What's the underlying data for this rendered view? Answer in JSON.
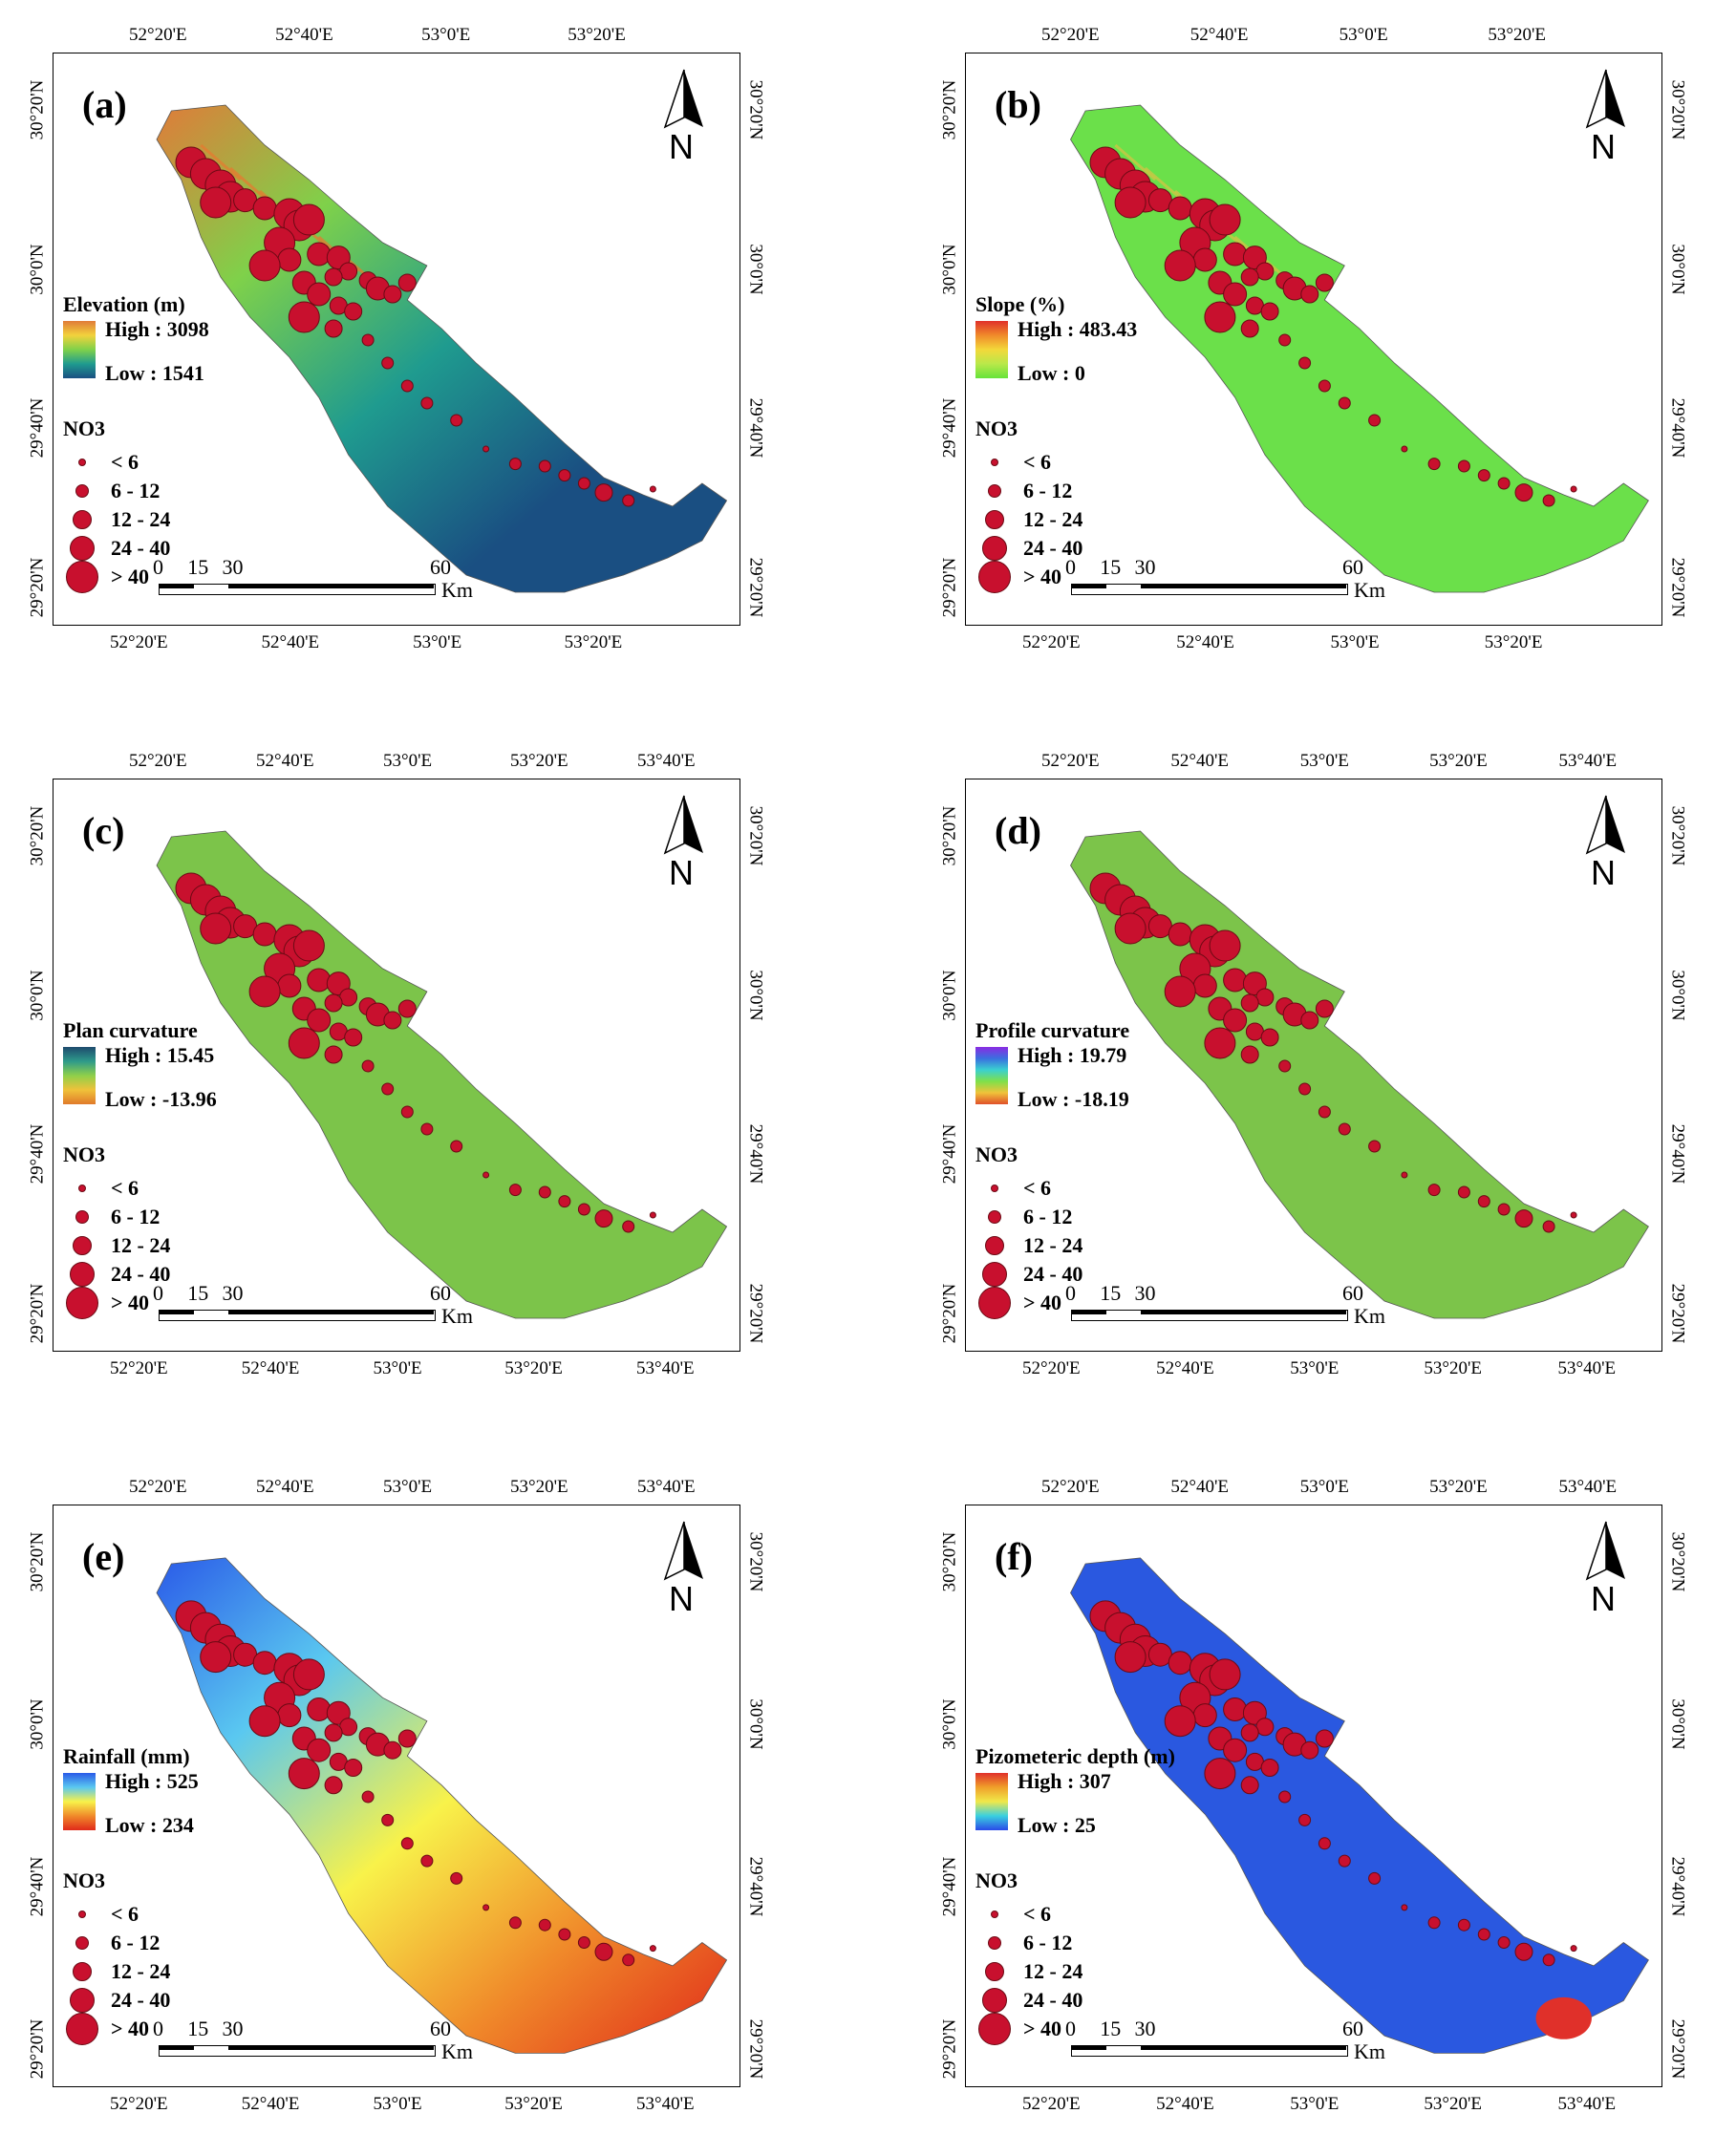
{
  "colors": {
    "point_fill": "#c8102e",
    "point_stroke": "#6b0a14",
    "frame": "#000000"
  },
  "north_label": "N",
  "no3_title": "NO3",
  "no3_classes": [
    "< 6",
    "6 - 12",
    "12 - 24",
    "24 - 40",
    "> 40"
  ],
  "scale_bar": {
    "ticks": [
      "0",
      "15",
      "30",
      "60"
    ],
    "unit": "Km"
  },
  "panels": [
    {
      "id": "a",
      "label": "(a)",
      "top_ticks": [
        "52°20'E",
        "52°40'E",
        "53°0'E",
        "53°20'E"
      ],
      "bottom_ticks": [
        "52°20'E",
        "52°40'E",
        "53°0'E",
        "53°20'E"
      ],
      "left_ticks": [
        "30°20'N",
        "30°0'N",
        "29°40'N",
        "29°20'N"
      ],
      "right_ticks": [
        "30°20'N",
        "30°0'N",
        "29°40'N",
        "29°20'N"
      ],
      "legend_title": "Elevation (m)",
      "high": "High : 3098",
      "low": "Low : 1541",
      "ramp": [
        "#e07b39",
        "#f2d23c",
        "#7fd14a",
        "#1f9b8f",
        "#1a4f82"
      ],
      "fill": "#1d4f7c",
      "accent": "#e8782f"
    },
    {
      "id": "b",
      "label": "(b)",
      "top_ticks": [
        "52°20'E",
        "52°40'E",
        "53°0'E",
        "53°20'E"
      ],
      "bottom_ticks": [
        "52°20'E",
        "52°40'E",
        "53°0'E",
        "53°20'E"
      ],
      "left_ticks": [
        "30°20'N",
        "30°0'N",
        "29°40'N",
        "29°20'N"
      ],
      "right_ticks": [
        "30°20'N",
        "30°0'N",
        "29°40'N",
        "29°20'N"
      ],
      "legend_title": "Slope (%)",
      "high": "High : 483.43",
      "low": "Low : 0",
      "ramp": [
        "#e0302a",
        "#f08a2a",
        "#f3d83a",
        "#b9e84a",
        "#66e33a"
      ],
      "fill": "#6be04a",
      "accent": "#d8c245"
    },
    {
      "id": "c",
      "label": "(c)",
      "top_ticks": [
        "52°20'E",
        "52°40'E",
        "53°0'E",
        "53°20'E",
        "53°40'E"
      ],
      "bottom_ticks": [
        "52°20'E",
        "52°40'E",
        "53°0'E",
        "53°20'E",
        "53°40'E"
      ],
      "left_ticks": [
        "30°20'N",
        "30°0'N",
        "29°40'N",
        "29°20'N"
      ],
      "right_ticks": [
        "30°20'N",
        "30°0'N",
        "29°40'N",
        "29°20'N"
      ],
      "legend_title": "Plan curvature",
      "high": "High : 15.45",
      "low": "Low : -13.96",
      "ramp": [
        "#1e4a6e",
        "#2e9a8a",
        "#8fd04a",
        "#f0c23a",
        "#e07a2a"
      ],
      "fill": "#7cc44a",
      "accent": "#5f9a55"
    },
    {
      "id": "d",
      "label": "(d)",
      "top_ticks": [
        "52°20'E",
        "52°40'E",
        "53°0'E",
        "53°20'E",
        "53°40'E"
      ],
      "bottom_ticks": [
        "52°20'E",
        "52°40'E",
        "53°0'E",
        "53°20'E",
        "53°40'E"
      ],
      "left_ticks": [
        "30°20'N",
        "30°0'N",
        "29°40'N",
        "29°20'N"
      ],
      "right_ticks": [
        "30°20'N",
        "30°0'N",
        "29°40'N",
        "29°20'N"
      ],
      "legend_title": "Profile curvature",
      "high": "High : 19.79",
      "low": "Low : -18.19",
      "ramp": [
        "#8a2be2",
        "#3a6fe0",
        "#3ad0d0",
        "#7fe04a",
        "#f0c23a",
        "#e0502a"
      ],
      "fill": "#7cc44a",
      "accent": "#5b7fa0"
    },
    {
      "id": "e",
      "label": "(e)",
      "top_ticks": [
        "52°20'E",
        "52°40'E",
        "53°0'E",
        "53°20'E",
        "53°40'E"
      ],
      "bottom_ticks": [
        "52°20'E",
        "52°40'E",
        "53°0'E",
        "53°20'E",
        "53°40'E"
      ],
      "left_ticks": [
        "30°20'N",
        "30°0'N",
        "29°40'N",
        "29°20'N"
      ],
      "right_ticks": [
        "30°20'N",
        "30°0'N",
        "29°40'N",
        "29°20'N"
      ],
      "legend_title": "Rainfall (mm)",
      "high": "High : 525",
      "low": "Low : 234",
      "ramp": [
        "#2a5ae8",
        "#5ac8f0",
        "#f8f24a",
        "#f08a2a",
        "#e02a1a"
      ],
      "fill": "#f0a030",
      "accent": "#2a5ae8"
    },
    {
      "id": "f",
      "label": "(f)",
      "top_ticks": [
        "52°20'E",
        "52°40'E",
        "53°0'E",
        "53°20'E",
        "53°40'E"
      ],
      "bottom_ticks": [
        "52°20'E",
        "52°40'E",
        "53°0'E",
        "53°20'E",
        "53°40'E"
      ],
      "left_ticks": [
        "30°20'N",
        "30°0'N",
        "29°40'N",
        "29°20'N"
      ],
      "right_ticks": [
        "30°20'N",
        "30°0'N",
        "29°40'N",
        "29°20'N"
      ],
      "legend_title": "Pizometeric depth (m)",
      "high": "High : 307",
      "low": "Low : 25",
      "ramp": [
        "#e0302a",
        "#f0a02a",
        "#f0e84a",
        "#3ad0e0",
        "#2a4ae8"
      ],
      "fill": "#2a58e0",
      "accent": "#e0302a"
    }
  ]
}
